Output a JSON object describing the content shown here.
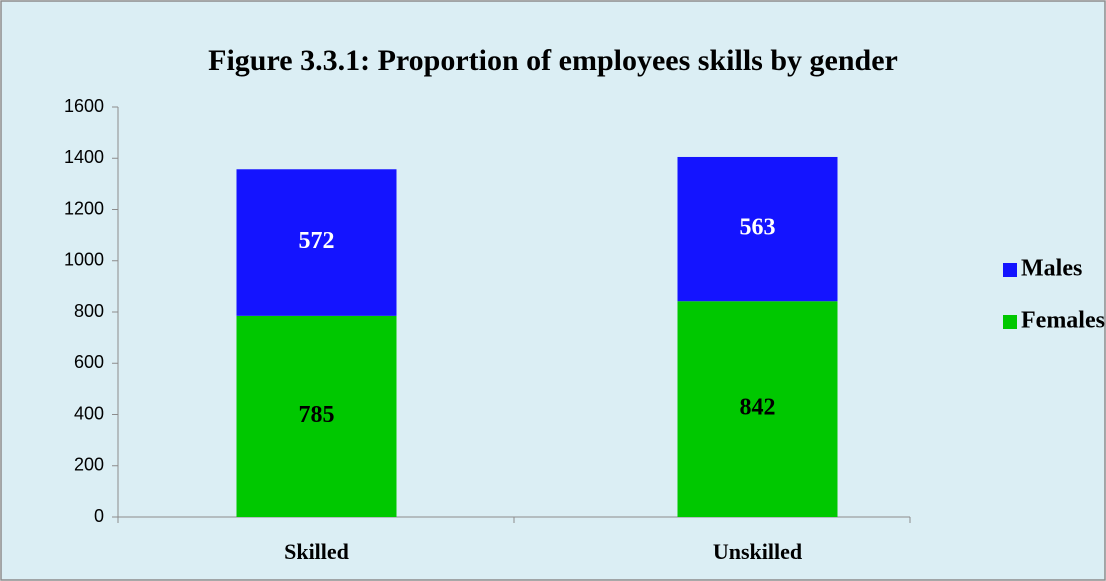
{
  "chart_data": {
    "type": "stacked_bar",
    "title": "Figure 3.3.1: Proportion of employees skills by gender",
    "categories": [
      "Skilled",
      "Unskilled"
    ],
    "series": [
      {
        "name": "Females",
        "color": "#00c800",
        "values": [
          785,
          842
        ]
      },
      {
        "name": "Males",
        "color": "#1414ff",
        "values": [
          572,
          563
        ]
      }
    ],
    "ylim": [
      0,
      1600
    ],
    "yticks": [
      0,
      200,
      400,
      600,
      800,
      1000,
      1200,
      1400,
      1600
    ],
    "legend": "right"
  }
}
